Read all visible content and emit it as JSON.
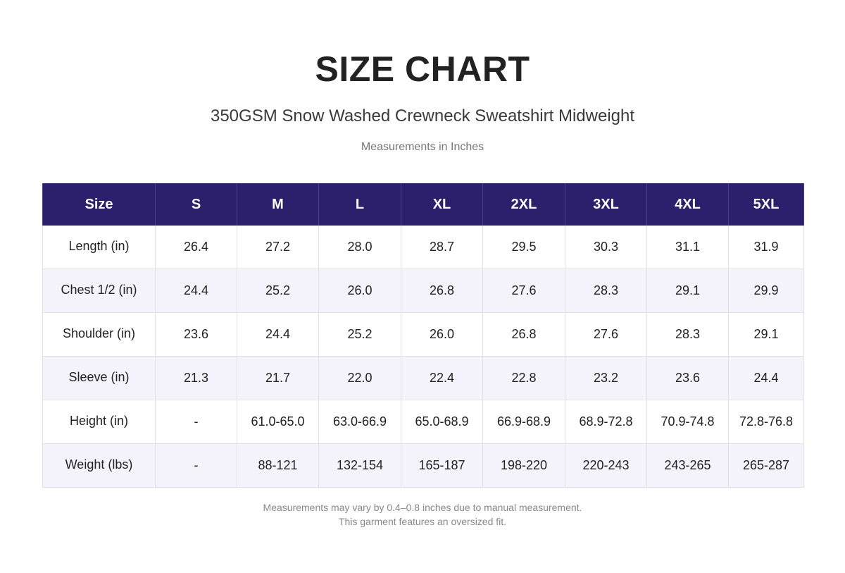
{
  "title": "SIZE CHART",
  "subtitle": "350GSM Snow Washed Crewneck Sweatshirt Midweight",
  "units_note": "Measurements in Inches",
  "colors": {
    "header_bg": "#2c1f6b",
    "header_text": "#ffffff",
    "stripe_bg": "#f4f3fc"
  },
  "table": {
    "headers": [
      "Size",
      "S",
      "M",
      "L",
      "XL",
      "2XL",
      "3XL",
      "4XL",
      "5XL"
    ],
    "rows": [
      {
        "label": "Length (in)",
        "values": [
          "26.4",
          "27.2",
          "28.0",
          "28.7",
          "29.5",
          "30.3",
          "31.1",
          "31.9"
        ]
      },
      {
        "label": "Chest 1/2 (in)",
        "values": [
          "24.4",
          "25.2",
          "26.0",
          "26.8",
          "27.6",
          "28.3",
          "29.1",
          "29.9"
        ]
      },
      {
        "label": "Shoulder (in)",
        "values": [
          "23.6",
          "24.4",
          "25.2",
          "26.0",
          "26.8",
          "27.6",
          "28.3",
          "29.1"
        ]
      },
      {
        "label": "Sleeve (in)",
        "values": [
          "21.3",
          "21.7",
          "22.0",
          "22.4",
          "22.8",
          "23.2",
          "23.6",
          "24.4"
        ]
      },
      {
        "label": "Height (in)",
        "values": [
          "-",
          "61.0-65.0",
          "63.0-66.9",
          "65.0-68.9",
          "66.9-68.9",
          "68.9-72.8",
          "70.9-74.8",
          "72.8-76.8"
        ]
      },
      {
        "label": "Weight (lbs)",
        "values": [
          "-",
          "88-121",
          "132-154",
          "165-187",
          "198-220",
          "220-243",
          "243-265",
          "265-287"
        ]
      }
    ]
  },
  "footnotes": [
    "Measurements may vary by 0.4–0.8 inches due to manual measurement.",
    "This garment features an oversized fit."
  ]
}
